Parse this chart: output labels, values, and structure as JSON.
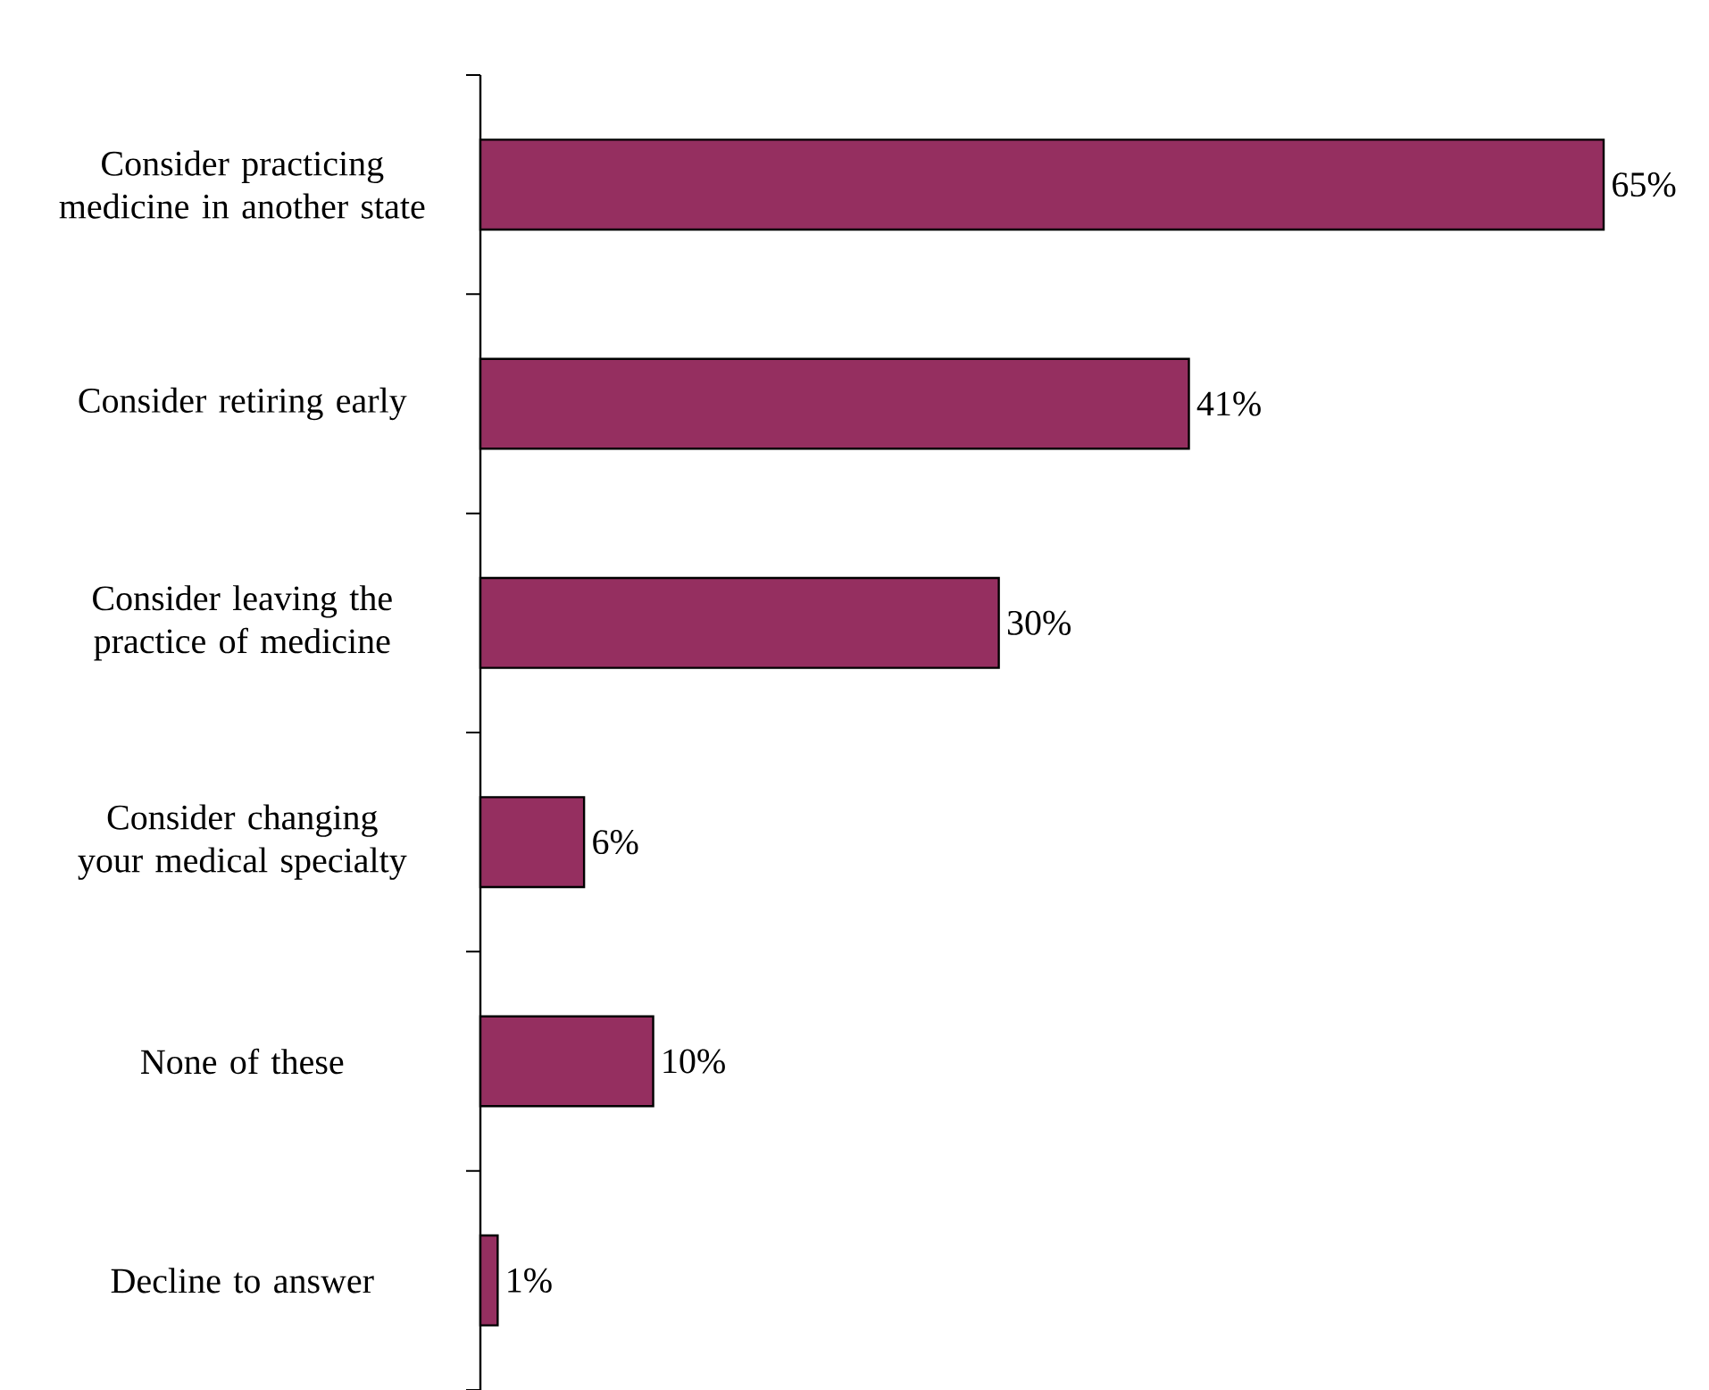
{
  "chart_data": {
    "type": "bar",
    "orientation": "horizontal",
    "categories": [
      "Consider practicing medicine in another state",
      "Consider retiring early",
      "Consider leaving the practice of medicine",
      "Consider changing your medical specialty",
      "None of these",
      "Decline to answer"
    ],
    "values": [
      65,
      41,
      30,
      6,
      10,
      1
    ],
    "value_labels": [
      "65%",
      "41%",
      "30%",
      "6%",
      "10%",
      "1%"
    ],
    "color": "#952f60"
  }
}
